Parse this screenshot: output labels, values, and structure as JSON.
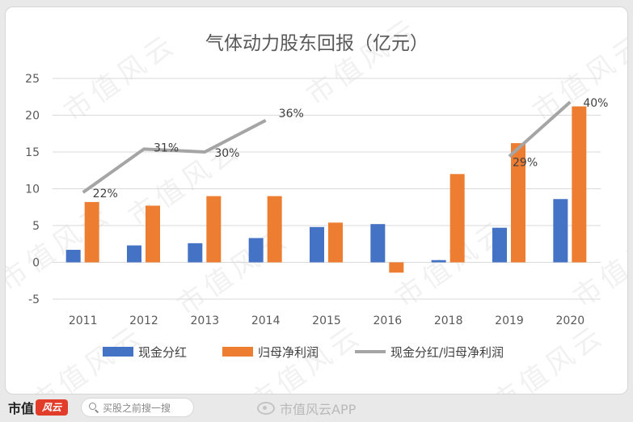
{
  "footer": {
    "brand_text": "市值",
    "brand_logo": "风云",
    "search_placeholder": "买股之前搜一搜",
    "weibo_text": "市值风云APP"
  },
  "watermark_text": "市值风云",
  "chart_data": {
    "type": "bar",
    "title": "气体动力股东回报（亿元）",
    "categories": [
      "2011",
      "2012",
      "2013",
      "2014",
      "2015",
      "2016",
      "2018",
      "2019",
      "2020"
    ],
    "ylim": [
      -5,
      25
    ],
    "yticks": [
      -5,
      0,
      5,
      10,
      15,
      20,
      25
    ],
    "grid": true,
    "legend_position": "bottom",
    "series": [
      {
        "name": "现金分红",
        "type": "bar",
        "color": "#4472C4",
        "values": [
          1.7,
          2.3,
          2.6,
          3.3,
          4.8,
          5.2,
          0.3,
          4.7,
          8.6
        ]
      },
      {
        "name": "归母净利润",
        "type": "bar",
        "color": "#ED7D31",
        "values": [
          8.2,
          7.7,
          9.0,
          9.0,
          5.4,
          -1.4,
          12.0,
          16.2,
          21.2
        ]
      },
      {
        "name": "现金分红/归母净利润",
        "type": "line",
        "color": "#A5A5A5",
        "values": [
          9.5,
          15.4,
          15.0,
          19.3,
          null,
          null,
          null,
          14.4,
          21.8
        ],
        "labels": [
          "22%",
          "31%",
          "30%",
          "36%",
          null,
          null,
          null,
          "29%",
          "40%"
        ]
      }
    ]
  }
}
